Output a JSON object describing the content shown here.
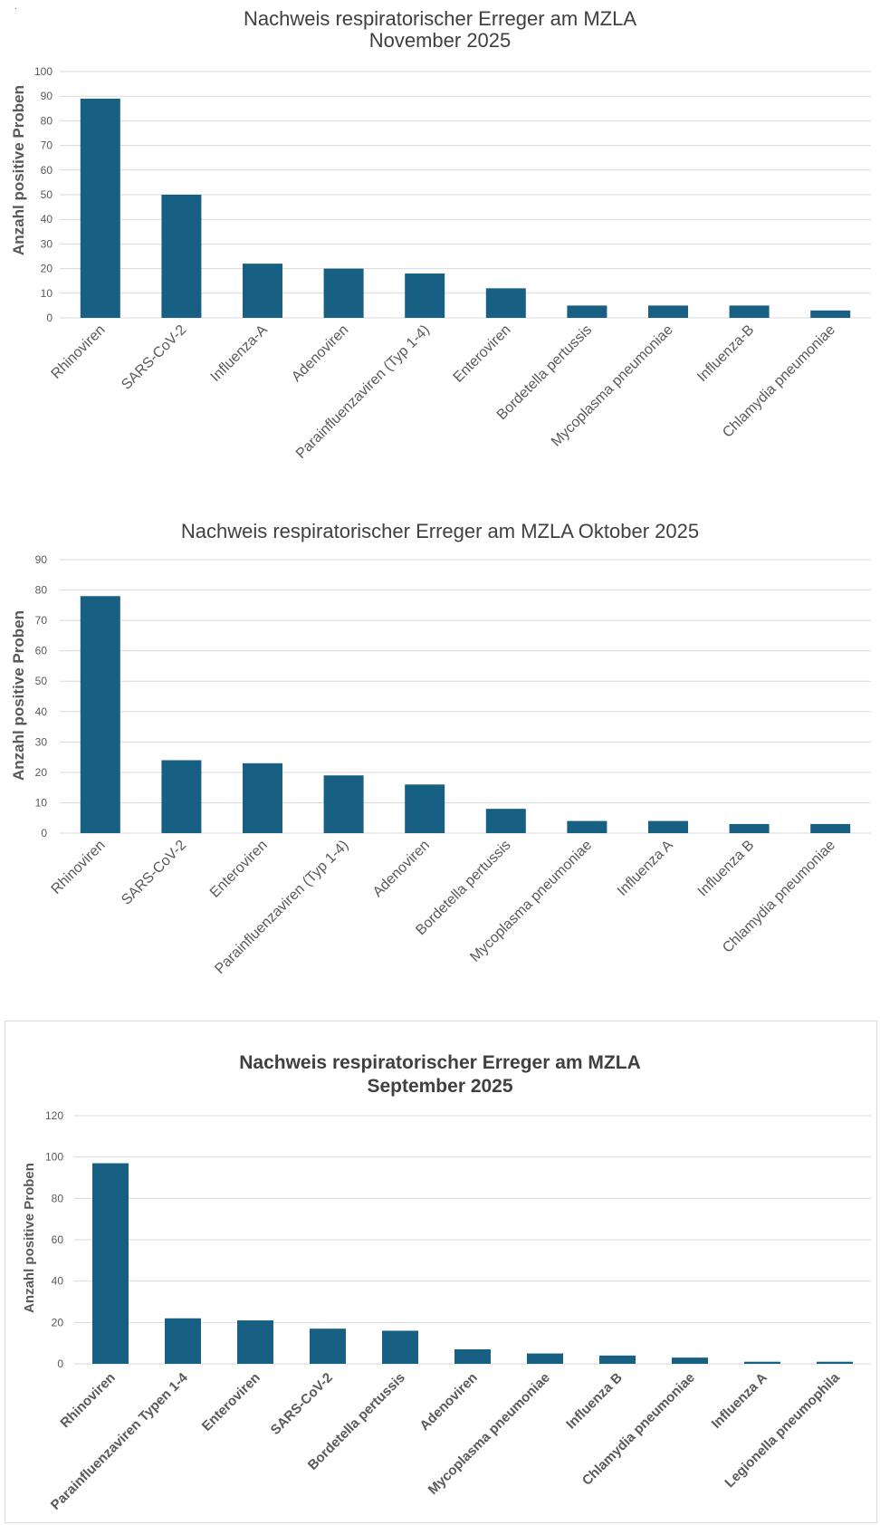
{
  "colors": {
    "bar": "#175f83",
    "grid": "#d9d9d9",
    "text": "#595959",
    "title": "#404040"
  },
  "separator_mark": ".",
  "chart_data": [
    {
      "type": "bar",
      "title_lines": [
        "Nachweis respiratorischer Erreger am MZLA",
        "November 2025"
      ],
      "ylabel": "Anzahl positive Proben",
      "ylim": [
        0,
        100
      ],
      "yticks": [
        0,
        10,
        20,
        30,
        40,
        50,
        60,
        70,
        80,
        90,
        100
      ],
      "categories": [
        "Rhinoviren",
        "SARS-CoV-2",
        "Influenza-A",
        "Adenoviren",
        "Parainfluenzaviren (Typ 1-4)",
        "Enteroviren",
        "Bordetella pertussis",
        "Mycoplasma pneumoniae",
        "Influenza-B",
        "Chlamydia pneumoniae"
      ],
      "values": [
        89,
        50,
        22,
        20,
        18,
        12,
        5,
        5,
        5,
        3
      ]
    },
    {
      "type": "bar",
      "title_lines": [
        "Nachweis respiratorischer Erreger am MZLA Oktober 2025"
      ],
      "ylabel": "Anzahl positive Proben",
      "ylim": [
        0,
        90
      ],
      "yticks": [
        0,
        10,
        20,
        30,
        40,
        50,
        60,
        70,
        80,
        90
      ],
      "categories": [
        "Rhinoviren",
        "SARS-CoV-2",
        "Enteroviren",
        "Parainfluenzaviren (Typ 1-4)",
        "Adenoviren",
        "Bordetella pertussis",
        "Mycoplasma pneumoniae",
        "Influenza A",
        "Influenza B",
        "Chlamydia pneumoniae"
      ],
      "values": [
        78,
        24,
        23,
        19,
        16,
        8,
        4,
        4,
        3,
        3
      ]
    },
    {
      "type": "bar",
      "title_lines": [
        "Nachweis respiratorischer Erreger am MZLA",
        "September 2025"
      ],
      "ylabel": "Anzahl positive Proben",
      "ylim": [
        0,
        120
      ],
      "yticks": [
        0,
        20,
        40,
        60,
        80,
        100,
        120
      ],
      "categories": [
        "Rhinoviren",
        "Parainfluenzaviren Typen 1-4",
        "Enteroviren",
        "SARS-CoV-2",
        "Bordetella pertussis",
        "Adenoviren",
        "Mycoplasma pneumoniae",
        "Influenza B",
        "Chlamydia pneumoniae",
        "Influenza A",
        "Legionella pneumophila"
      ],
      "values": [
        97,
        22,
        21,
        17,
        16,
        7,
        5,
        4,
        3,
        1,
        1
      ]
    }
  ]
}
